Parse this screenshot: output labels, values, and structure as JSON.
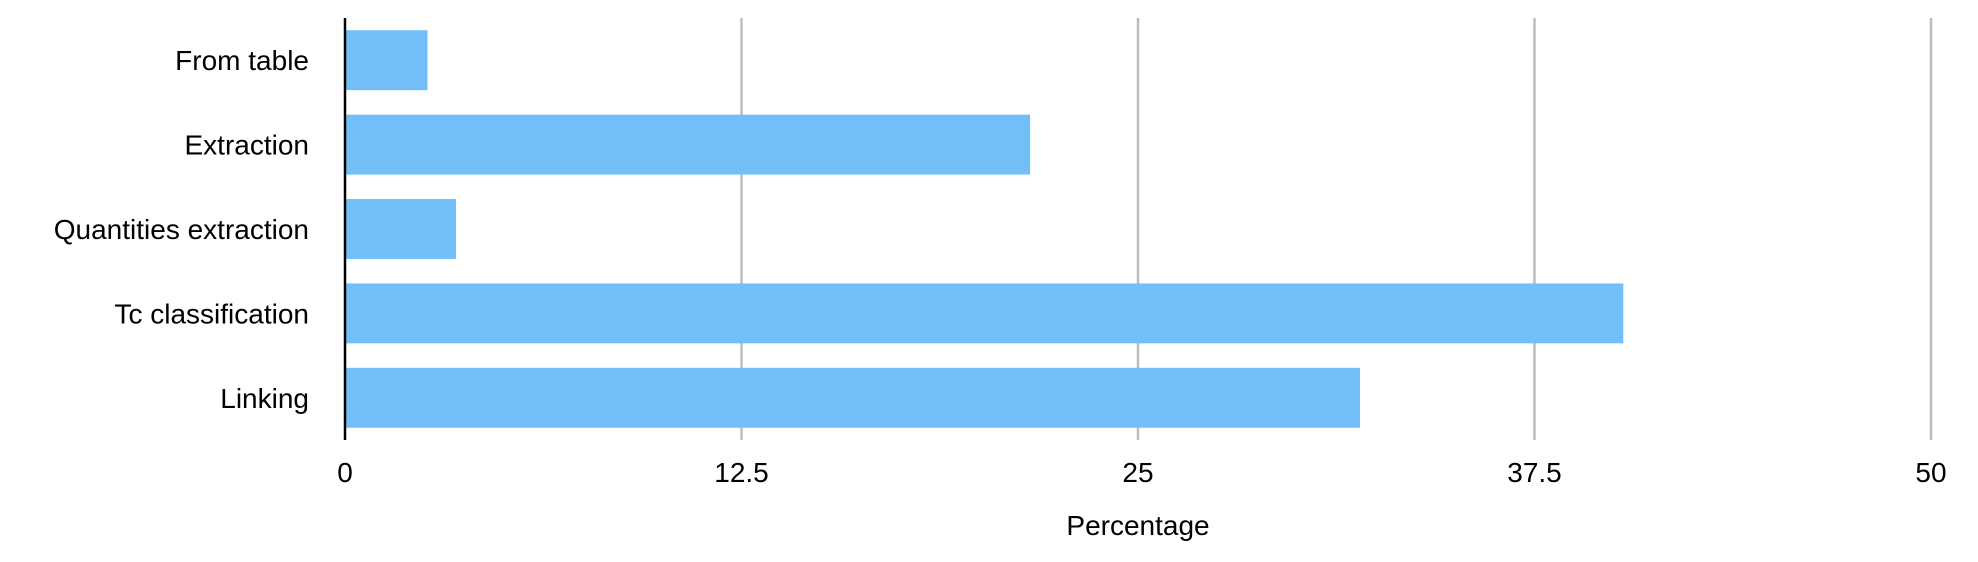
{
  "chart_data": {
    "type": "bar",
    "orientation": "horizontal",
    "categories": [
      "From table",
      "Extraction",
      "Quantities extraction",
      "Tc classification",
      "Linking"
    ],
    "values": [
      2.6,
      21.6,
      3.5,
      40.3,
      32.0
    ],
    "xlabel": "Percentage",
    "ylabel": "",
    "xlim": [
      0,
      50
    ],
    "xticks": [
      "0",
      "12.5",
      "25",
      "37.5",
      "50"
    ],
    "grid": "vertical",
    "bar_color": "#72BFF8",
    "grid_color": "#BDBDBD",
    "axis_color": "#000000"
  }
}
